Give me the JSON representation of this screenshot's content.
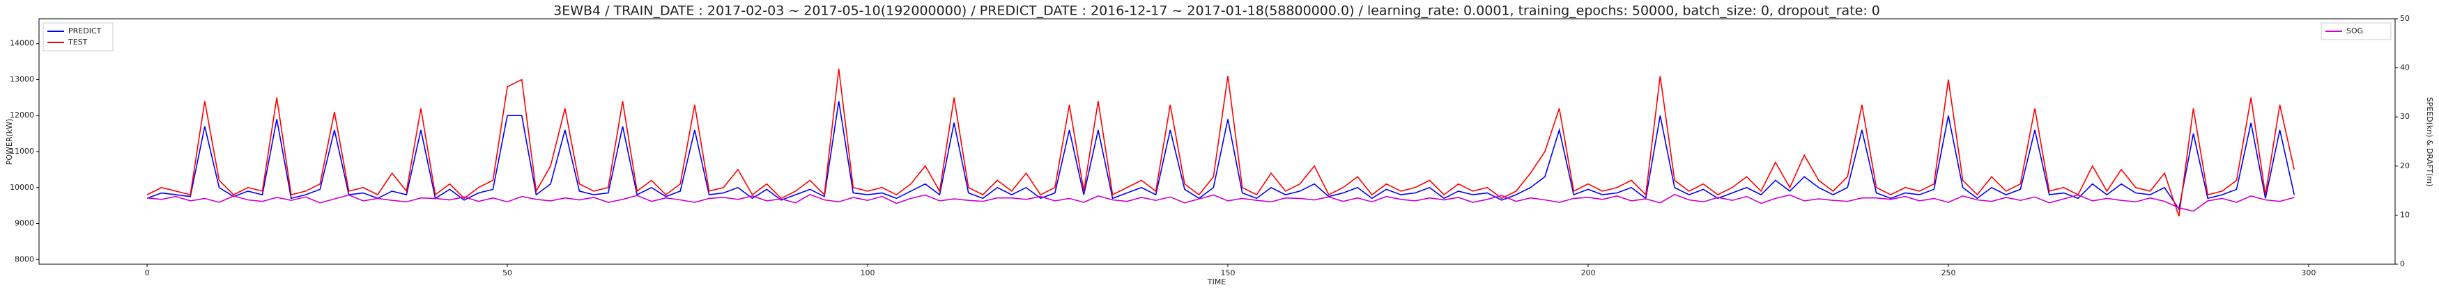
{
  "chart_data": {
    "type": "line",
    "title": "3EWB4 / TRAIN_DATE : 2017-02-03 ~ 2017-05-10(192000000) / PREDICT_DATE : 2016-12-17 ~ 2017-01-18(58800000.0) / learning_rate: 0.0001, training_epochs: 50000, batch_size: 0, dropout_rate: 0",
    "xlabel": "TIME",
    "ylabel": "POWER(kW)",
    "y2label": "SPEED(kn) & DRAFT(m)",
    "xlim": [
      -15,
      312
    ],
    "xticks": [
      0,
      50,
      100,
      150,
      200,
      250,
      300
    ],
    "ylim": [
      7870,
      14690
    ],
    "yticks": [
      8000,
      9000,
      10000,
      11000,
      12000,
      13000,
      14000
    ],
    "y2lim": [
      0,
      50
    ],
    "y2ticks": [
      0,
      10,
      20,
      30,
      40,
      50
    ],
    "legend": {
      "y": "upper left",
      "y2": "upper right"
    },
    "x": [
      0,
      2,
      4,
      6,
      8,
      10,
      12,
      14,
      16,
      18,
      20,
      22,
      24,
      26,
      28,
      30,
      32,
      34,
      36,
      38,
      40,
      42,
      44,
      46,
      48,
      50,
      52,
      54,
      56,
      58,
      60,
      62,
      64,
      66,
      68,
      70,
      72,
      74,
      76,
      78,
      80,
      82,
      84,
      86,
      88,
      90,
      92,
      94,
      96,
      98,
      100,
      102,
      104,
      106,
      108,
      110,
      112,
      114,
      116,
      118,
      120,
      122,
      124,
      126,
      128,
      130,
      132,
      134,
      136,
      138,
      140,
      142,
      144,
      146,
      148,
      150,
      152,
      154,
      156,
      158,
      160,
      162,
      164,
      166,
      168,
      170,
      172,
      174,
      176,
      178,
      180,
      182,
      184,
      186,
      188,
      190,
      192,
      194,
      196,
      198,
      200,
      202,
      204,
      206,
      208,
      210,
      212,
      214,
      216,
      218,
      220,
      222,
      224,
      226,
      228,
      230,
      232,
      234,
      236,
      238,
      240,
      242,
      244,
      246,
      248,
      250,
      252,
      254,
      256,
      258,
      260,
      262,
      264,
      266,
      268,
      270,
      272,
      274,
      276,
      278,
      280,
      282,
      284,
      286,
      288,
      290,
      292,
      294,
      296,
      298
    ],
    "series": [
      {
        "name": "PREDICT",
        "color": "#0000ff",
        "axis": "y",
        "values": [
          9700,
          9850,
          9800,
          9750,
          11700,
          10000,
          9750,
          9900,
          9800,
          11900,
          9700,
          9800,
          9950,
          11600,
          9800,
          9850,
          9700,
          9900,
          9800,
          11600,
          9700,
          9950,
          9650,
          9850,
          9950,
          12000,
          12000,
          9800,
          10100,
          11600,
          9900,
          9800,
          9850,
          11700,
          9800,
          10000,
          9750,
          9900,
          11600,
          9800,
          9850,
          10000,
          9700,
          9950,
          9650,
          9800,
          9950,
          9750,
          12400,
          9850,
          9800,
          9850,
          9700,
          9900,
          10100,
          9800,
          11800,
          9850,
          9700,
          10000,
          9800,
          10000,
          9700,
          9850,
          11600,
          9800,
          11600,
          9700,
          9850,
          10000,
          9800,
          11600,
          9950,
          9700,
          10000,
          11900,
          9850,
          9700,
          10000,
          9800,
          9900,
          10100,
          9750,
          9850,
          10000,
          9700,
          9950,
          9800,
          9850,
          10000,
          9700,
          9900,
          9800,
          9850,
          9650,
          9800,
          10000,
          10300,
          11600,
          9800,
          9950,
          9800,
          9850,
          10000,
          9700,
          12000,
          10000,
          9800,
          9950,
          9700,
          9850,
          10000,
          9800,
          10200,
          9900,
          10300,
          10000,
          9800,
          10000,
          11600,
          9850,
          9700,
          9850,
          9800,
          9950,
          12000,
          10000,
          9700,
          10000,
          9800,
          9950,
          11600,
          9800,
          9850,
          9700,
          10100,
          9800,
          10100,
          9850,
          9800,
          10000,
          9400,
          11500,
          9700,
          9800,
          9950,
          11800,
          9700,
          11600,
          9800
        ]
      },
      {
        "name": "TEST",
        "color": "#ff0000",
        "axis": "y",
        "values": [
          9800,
          10000,
          9900,
          9800,
          12400,
          10200,
          9800,
          10000,
          9900,
          12500,
          9800,
          9900,
          10100,
          12100,
          9900,
          10000,
          9800,
          10400,
          9900,
          12200,
          9800,
          10100,
          9700,
          10000,
          10200,
          12800,
          13000,
          9900,
          10600,
          12200,
          10100,
          9900,
          10000,
          12400,
          9900,
          10200,
          9800,
          10100,
          12300,
          9900,
          10000,
          10500,
          9800,
          10100,
          9700,
          9900,
          10200,
          9800,
          13300,
          10000,
          9900,
          10000,
          9800,
          10100,
          10600,
          9900,
          12500,
          10000,
          9800,
          10200,
          9900,
          10400,
          9800,
          10000,
          12300,
          9900,
          12400,
          9800,
          10000,
          10200,
          9900,
          12300,
          10100,
          9800,
          10300,
          13100,
          10000,
          9800,
          10400,
          9900,
          10100,
          10600,
          9800,
          10000,
          10300,
          9800,
          10100,
          9900,
          10000,
          10200,
          9800,
          10100,
          9900,
          10000,
          9700,
          9900,
          10400,
          11000,
          12200,
          9900,
          10100,
          9900,
          10000,
          10200,
          9800,
          13100,
          10200,
          9900,
          10100,
          9800,
          10000,
          10300,
          9900,
          10700,
          10000,
          10900,
          10200,
          9900,
          10300,
          12300,
          10000,
          9800,
          10000,
          9900,
          10100,
          13000,
          10200,
          9800,
          10300,
          9900,
          10100,
          12200,
          9900,
          10000,
          9800,
          10600,
          9900,
          10500,
          10000,
          9900,
          10400,
          9200,
          12200,
          9800,
          9900,
          10200,
          12500,
          9800,
          12300,
          10500
        ]
      },
      {
        "name": "SOG",
        "color": "#cc00cc",
        "axis": "y2",
        "values": [
          13.5,
          13.2,
          13.8,
          12.9,
          13.4,
          12.6,
          13.9,
          13.1,
          12.8,
          13.6,
          13.0,
          13.7,
          12.5,
          13.3,
          14.1,
          12.9,
          13.4,
          13.0,
          12.7,
          13.5,
          13.4,
          13.1,
          13.7,
          12.8,
          13.5,
          12.7,
          13.8,
          13.2,
          12.9,
          13.5,
          13.1,
          13.6,
          12.6,
          13.2,
          14.0,
          12.8,
          13.5,
          13.1,
          12.6,
          13.4,
          13.6,
          13.2,
          13.9,
          12.9,
          13.3,
          12.5,
          14.2,
          13.1,
          12.7,
          13.6,
          13.0,
          13.8,
          12.4,
          13.4,
          14.1,
          12.9,
          13.3,
          13.0,
          12.8,
          13.5,
          13.5,
          13.2,
          13.8,
          12.9,
          13.4,
          12.6,
          13.9,
          13.1,
          12.8,
          13.6,
          13.0,
          13.7,
          12.5,
          13.3,
          14.1,
          12.9,
          13.4,
          13.0,
          12.7,
          13.5,
          13.4,
          13.1,
          13.7,
          12.8,
          13.5,
          12.7,
          13.8,
          13.2,
          12.9,
          13.5,
          13.1,
          13.6,
          12.6,
          13.2,
          14.0,
          12.8,
          13.5,
          13.1,
          12.6,
          13.4,
          13.6,
          13.2,
          13.9,
          12.9,
          13.3,
          12.5,
          14.2,
          13.1,
          12.7,
          13.6,
          13.0,
          13.8,
          12.4,
          13.4,
          14.1,
          12.9,
          13.3,
          13.0,
          12.8,
          13.5,
          13.5,
          13.2,
          13.8,
          12.9,
          13.4,
          12.6,
          13.9,
          13.1,
          12.8,
          13.6,
          13.0,
          13.7,
          12.5,
          13.3,
          14.1,
          12.9,
          13.4,
          13.0,
          12.7,
          13.5,
          12.8,
          11.5,
          10.8,
          12.9,
          13.4,
          12.6,
          13.9,
          13.1,
          12.8,
          13.6
        ]
      }
    ]
  }
}
